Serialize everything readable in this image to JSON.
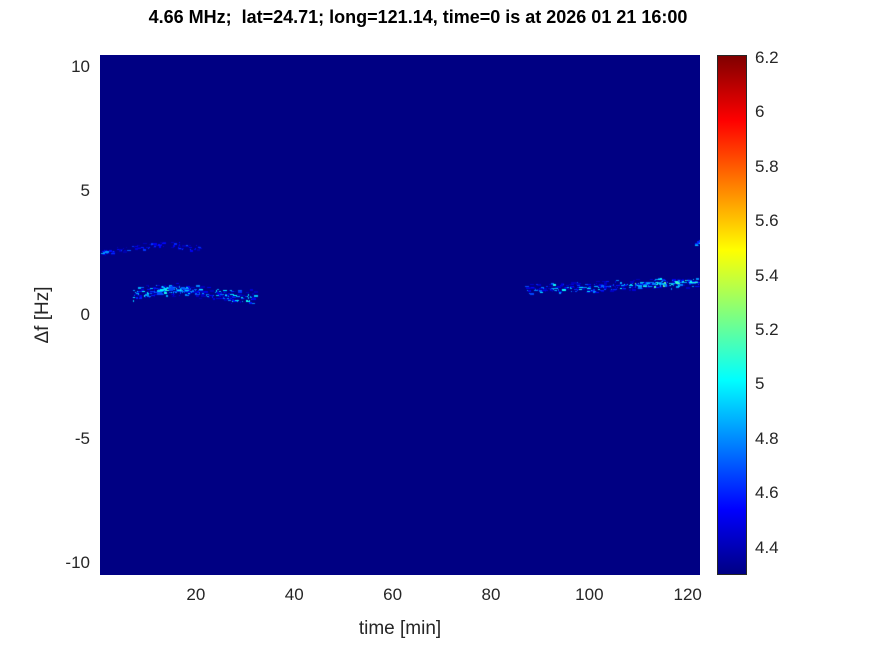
{
  "title": "4.66 MHz;  lat=24.71; long=121.14, time=0 is at 2026 01 21 16:00",
  "chart_data": {
    "type": "heatmap",
    "title": "4.66 MHz;  lat=24.71; long=121.14, time=0 is at 2026 01 21 16:00",
    "xlabel": "time [min]",
    "ylabel": "Δf [Hz]",
    "xlim": [
      0.5,
      122.5
    ],
    "ylim": [
      -10.5,
      10.5
    ],
    "xticks": [
      20,
      40,
      60,
      80,
      100,
      120
    ],
    "yticks": [
      10,
      5,
      0,
      -5,
      -10
    ],
    "grid": false,
    "legend": false,
    "background_value": 4.3,
    "colorbar": {
      "position": "right",
      "min": 4.3,
      "max": 6.21,
      "ticks": [
        4.4,
        4.6,
        4.8,
        5,
        5.2,
        5.4,
        5.6,
        5.8,
        6,
        6.2
      ],
      "colormap": "jet",
      "stops": [
        [
          0,
          "#000083"
        ],
        [
          0.125,
          "#0000ff"
        ],
        [
          0.375,
          "#00ffff"
        ],
        [
          0.625,
          "#ffff00"
        ],
        [
          0.875,
          "#ff0000"
        ],
        [
          1,
          "#800000"
        ]
      ]
    },
    "features": [
      {
        "name": "faint-upper-trace-early",
        "path": [
          [
            0.7,
            2.55
          ],
          [
            5,
            2.65
          ],
          [
            9,
            2.75
          ],
          [
            13,
            2.85
          ],
          [
            17,
            2.8
          ],
          [
            21,
            2.7
          ]
        ],
        "spread": 0.18,
        "count": 90,
        "vmin": 4.38,
        "vmax": 4.75
      },
      {
        "name": "left-edge-spot",
        "path": [
          [
            0.6,
            2.5
          ],
          [
            1.8,
            2.6
          ]
        ],
        "spread": 0.1,
        "count": 10,
        "vmin": 4.55,
        "vmax": 4.9
      },
      {
        "name": "main-trace-early",
        "path": [
          [
            7,
            0.8
          ],
          [
            10,
            0.95
          ],
          [
            13,
            1.0
          ],
          [
            16,
            1.05
          ],
          [
            19,
            1.0
          ],
          [
            23,
            0.9
          ],
          [
            27,
            0.8
          ],
          [
            32,
            0.75
          ]
        ],
        "spread": 0.3,
        "count": 300,
        "vmin": 4.4,
        "vmax": 5.05
      },
      {
        "name": "bright-cluster-early",
        "path": [
          [
            12,
            1.0
          ],
          [
            15,
            1.05
          ],
          [
            18,
            1.0
          ]
        ],
        "spread": 0.15,
        "count": 60,
        "vmin": 4.65,
        "vmax": 5.15
      },
      {
        "name": "main-trace-late",
        "path": [
          [
            87,
            1.05
          ],
          [
            92,
            1.1
          ],
          [
            97,
            1.1
          ],
          [
            102,
            1.15
          ],
          [
            107,
            1.2
          ],
          [
            112,
            1.25
          ],
          [
            117,
            1.3
          ],
          [
            122.3,
            1.35
          ]
        ],
        "spread": 0.25,
        "count": 320,
        "vmin": 4.4,
        "vmax": 5.05
      },
      {
        "name": "bright-cluster-late",
        "path": [
          [
            108,
            1.2
          ],
          [
            113,
            1.28
          ],
          [
            118,
            1.32
          ],
          [
            121.8,
            1.35
          ]
        ],
        "spread": 0.12,
        "count": 70,
        "vmin": 4.75,
        "vmax": 5.3
      },
      {
        "name": "right-edge-spot",
        "path": [
          [
            121.4,
            2.85
          ],
          [
            122.4,
            3.0
          ]
        ],
        "spread": 0.12,
        "count": 12,
        "vmin": 4.6,
        "vmax": 5.1
      }
    ]
  },
  "colors": {
    "page_bg": "#ffffff",
    "plot_bg": "#000083",
    "tick_label": "#262626",
    "axis_label": "#262626",
    "title_color": "#000000",
    "colorbar_border": "#262626"
  }
}
